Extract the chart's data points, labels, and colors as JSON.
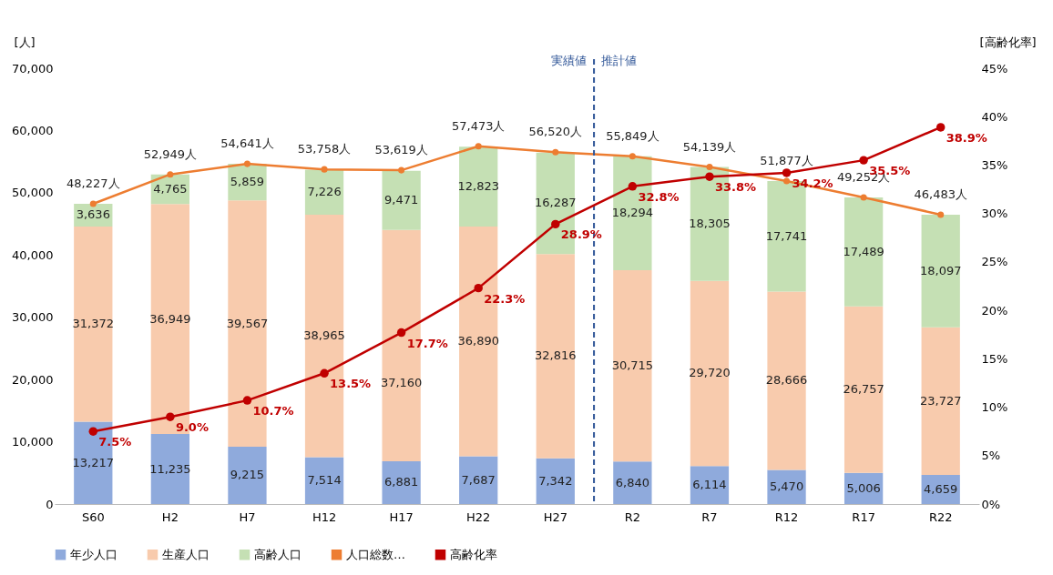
{
  "chart_data": {
    "type": "bar",
    "stacked": true,
    "categories": [
      "S60",
      "H2",
      "H7",
      "H12",
      "H17",
      "H22",
      "H27",
      "R2",
      "R7",
      "R12",
      "R17",
      "R22"
    ],
    "series": [
      {
        "name": "年少人口",
        "color": "#8faadc",
        "values": [
          13217,
          11235,
          9215,
          7514,
          6881,
          7687,
          7342,
          6840,
          6114,
          5470,
          5006,
          4659
        ],
        "value_labels": [
          "13,217",
          "11,235",
          "9,215",
          "7,514",
          "6,881",
          "7,687",
          "7,342",
          "6,840",
          "6,114",
          "5,470",
          "5,006",
          "4,659"
        ]
      },
      {
        "name": "生産人口",
        "color": "#f8cbad",
        "values": [
          31372,
          36949,
          39567,
          38965,
          37160,
          36890,
          32816,
          30715,
          29720,
          28666,
          26757,
          23727
        ],
        "value_labels": [
          "31,372",
          "36,949",
          "39,567",
          "38,965",
          "37,160",
          "36,890",
          "32,816",
          "30,715",
          "29,720",
          "28,666",
          "26,757",
          "23,727"
        ]
      },
      {
        "name": "高齢人口",
        "color": "#c5e0b4",
        "values": [
          3636,
          4765,
          5859,
          7226,
          9471,
          12823,
          16287,
          18294,
          18305,
          17741,
          17489,
          18097
        ],
        "value_labels": [
          "3,636",
          "4,765",
          "5,859",
          "7,226",
          "9,471",
          "12,823",
          "16,287",
          "18,294",
          "18,305",
          "17,741",
          "17,489",
          "18,097"
        ]
      },
      {
        "name": "人口総数…",
        "type": "line",
        "color": "#ed7d31",
        "marker": "circle",
        "values": [
          48227,
          52949,
          54641,
          53758,
          53619,
          57473,
          56520,
          55849,
          54139,
          51877,
          49252,
          46483
        ],
        "value_labels": [
          "48,227人",
          "52,949人",
          "54,641人",
          "53,758人",
          "53,619人",
          "57,473人",
          "56,520人",
          "55,849人",
          "54,139人",
          "51,877人",
          "49,252人",
          "46,483人"
        ]
      },
      {
        "name": "高齢化率",
        "type": "line",
        "color": "#c00000",
        "marker": "circle",
        "axis": "y2",
        "values": [
          7.5,
          9.0,
          10.7,
          13.5,
          17.7,
          22.3,
          28.9,
          32.8,
          33.8,
          34.2,
          35.5,
          38.9
        ],
        "value_labels": [
          "7.5%",
          "9.0%",
          "10.7%",
          "13.5%",
          "17.7%",
          "22.3%",
          "28.9%",
          "32.8%",
          "33.8%",
          "34.2%",
          "35.5%",
          "38.9%"
        ]
      }
    ],
    "ylabel": "[人]",
    "y2label": "[高齢化率]",
    "ylim": [
      0,
      70000
    ],
    "yticks": [
      0,
      {
        "value": 10000,
        "label": "10,000"
      },
      {
        "value": 20000,
        "label": "20,000"
      },
      {
        "value": 30000,
        "label": "30,000"
      },
      {
        "value": 40000,
        "label": "40,000"
      },
      {
        "value": 50000,
        "label": "50,000"
      },
      {
        "value": 60000,
        "label": "60,000"
      },
      {
        "value": 70000,
        "label": "70,000"
      }
    ],
    "y2lim": [
      0,
      45
    ],
    "y2ticks": [
      {
        "value": 0,
        "label": "0%"
      },
      {
        "value": 5,
        "label": "5%"
      },
      {
        "value": 10,
        "label": "10%"
      },
      {
        "value": 15,
        "label": "15%"
      },
      {
        "value": 20,
        "label": "20%"
      },
      {
        "value": 25,
        "label": "25%"
      },
      {
        "value": 30,
        "label": "30%"
      },
      {
        "value": 35,
        "label": "35%"
      },
      {
        "value": 40,
        "label": "40%"
      },
      {
        "value": 45,
        "label": "45%"
      }
    ],
    "ref_lines": [
      {
        "axis": "x",
        "value": "R2",
        "line_style": "dashed",
        "color": "#2f5597"
      }
    ],
    "annotations": [
      "実績値",
      "推計値"
    ],
    "legend": "bottom"
  }
}
